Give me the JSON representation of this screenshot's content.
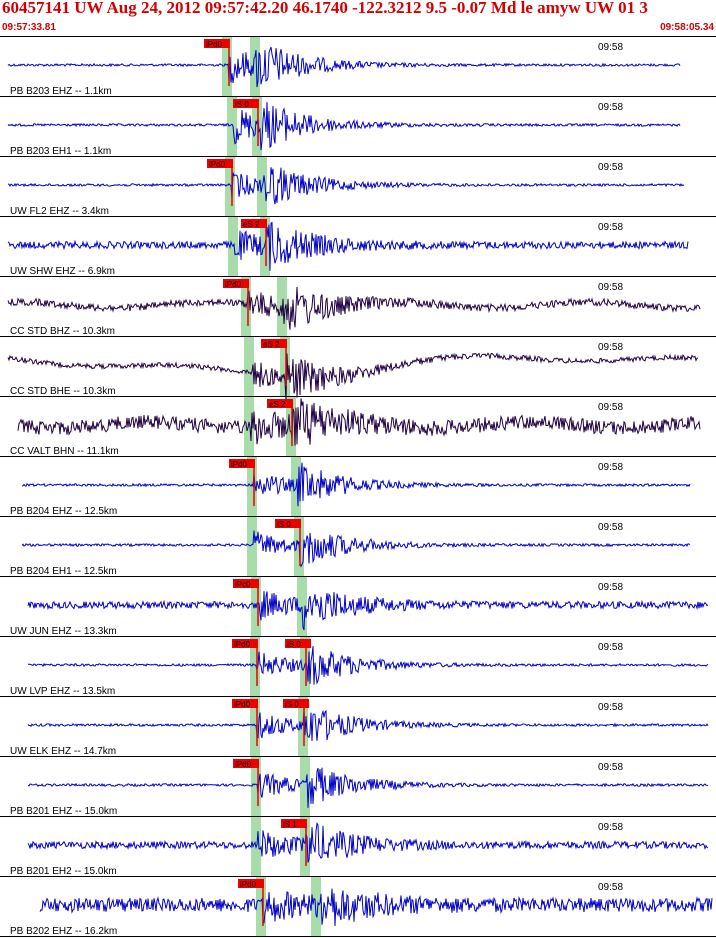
{
  "header": {
    "title": "60457141 UW Aug 24, 2012 09:57:42.20    46.1740 -122.3212  9.5 -0.07 Md le amyw UW 01    3",
    "start_time": "09:57:33.81",
    "end_time": "09:58:05.34"
  },
  "colors": {
    "title": "#d40000",
    "trace_vertical": "#0000cc",
    "trace_broadband": "#220044",
    "pick_box": "#ee0000",
    "pick_window": "#a8dca8",
    "separator": "#000000"
  },
  "time_label": "09:58",
  "traces": [
    {
      "label": "PB B203 EHZ -- 1.1km",
      "color": "blue",
      "amp": "low",
      "picks": [
        "iPd0"
      ]
    },
    {
      "label": "PB B203 EH1 -- 1.1km",
      "color": "blue",
      "amp": "low",
      "picks": [
        "iS 0"
      ]
    },
    {
      "label": "UW FL2 EHZ -- 3.4km",
      "color": "blue",
      "amp": "low",
      "picks": [
        "iPd0"
      ]
    },
    {
      "label": "UW SHW EHZ -- 6.9km",
      "color": "blue",
      "amp": "med",
      "picks": [
        "eS 2"
      ]
    },
    {
      "label": "CC STD BHZ -- 10.3km",
      "color": "dark",
      "amp": "med",
      "picks": [
        "iPd0"
      ]
    },
    {
      "label": "CC STD BHE -- 10.3km",
      "color": "dark",
      "amp": "wave",
      "picks": [
        "eS 2"
      ]
    },
    {
      "label": "CC VALT BHN -- 11.1km",
      "color": "dark",
      "amp": "high",
      "picks": [
        "eS 2"
      ]
    },
    {
      "label": "PB B204 EHZ -- 12.5km",
      "color": "blue",
      "amp": "low",
      "picks": [
        "iPd0"
      ]
    },
    {
      "label": "PB B204 EH1 -- 12.5km",
      "color": "blue",
      "amp": "low",
      "picks": [
        "iS 0"
      ]
    },
    {
      "label": "UW JUN EHZ -- 13.3km",
      "color": "blue",
      "amp": "med",
      "picks": [
        "iPc0"
      ]
    },
    {
      "label": "UW LVP EHZ -- 13.5km",
      "color": "blue",
      "amp": "low",
      "picks": [
        "iPd0",
        "iS 0"
      ]
    },
    {
      "label": "UW ELK EHZ -- 14.7km",
      "color": "blue",
      "amp": "low",
      "picks": [
        "iPd0",
        "iS 0"
      ]
    },
    {
      "label": "PB B201 EHZ -- 15.0km",
      "color": "blue",
      "amp": "low",
      "picks": [
        "iPd0"
      ]
    },
    {
      "label": "PB B201 EH2 -- 15.0km",
      "color": "blue",
      "amp": "med",
      "picks": [
        "iS 1"
      ]
    },
    {
      "label": "PB B202 EHZ -- 16.2km",
      "color": "blue",
      "amp": "high",
      "picks": [
        "iPd0"
      ]
    }
  ]
}
